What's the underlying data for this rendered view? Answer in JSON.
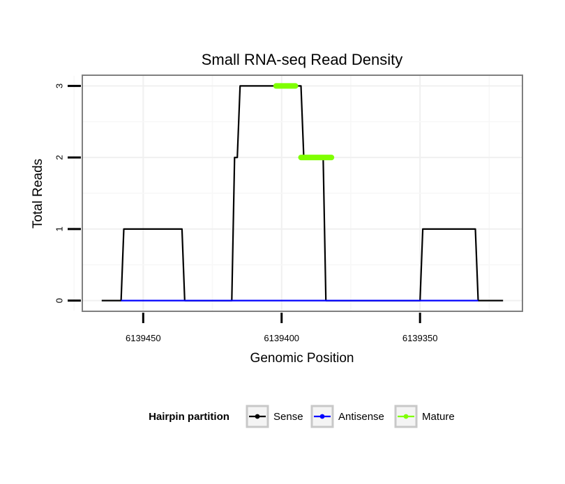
{
  "chart_data": {
    "type": "line",
    "title": "Small RNA-seq Read Density",
    "xlabel": "Genomic Position",
    "ylabel": "Total Reads",
    "x_reversed": true,
    "xlim": [
      6139472,
      6139313
    ],
    "ylim": [
      -0.15,
      3.15
    ],
    "x_ticks": [
      6139450,
      6139400,
      6139350
    ],
    "x_tick_labels": [
      "6139450",
      "6139400",
      "6139350"
    ],
    "y_ticks": [
      0,
      1,
      2,
      3
    ],
    "y_tick_labels": [
      "0",
      "1",
      "2",
      "3"
    ],
    "grid": true,
    "legend": {
      "title": "Hairpin partition",
      "placement": "bottom",
      "entries": [
        "Sense",
        "Antisense",
        "Mature"
      ]
    },
    "series": [
      {
        "name": "Sense",
        "color": "#000000",
        "x": [
          6139465,
          6139458,
          6139457,
          6139436,
          6139435,
          6139418,
          6139417,
          6139416,
          6139415,
          6139413,
          6139393,
          6139392,
          6139388,
          6139385,
          6139384,
          6139350,
          6139349,
          6139330,
          6139329,
          6139320
        ],
        "y": [
          0,
          0,
          1,
          1,
          0,
          0,
          2,
          2,
          3,
          3,
          3,
          2,
          2,
          2,
          0,
          0,
          1,
          1,
          0,
          0
        ]
      },
      {
        "name": "Antisense",
        "color": "#0000ff",
        "x": [
          6139458,
          6139329
        ],
        "y": [
          0,
          0
        ]
      },
      {
        "name": "Mature",
        "color": "#7fff00",
        "segments": [
          {
            "x": [
              6139402,
              6139395
            ],
            "y": [
              3,
              3
            ]
          },
          {
            "x": [
              6139393,
              6139382
            ],
            "y": [
              2,
              2
            ]
          }
        ]
      }
    ]
  }
}
